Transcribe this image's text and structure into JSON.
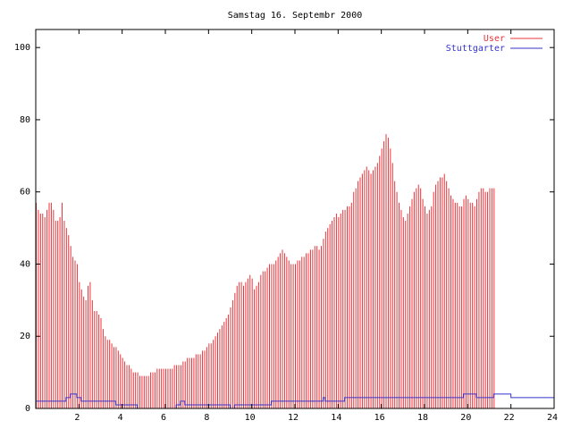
{
  "chart_data": {
    "type": "bar",
    "title": "Samstag 16. Septembr 2000",
    "xlabel": "",
    "ylabel": "",
    "xlim": [
      0,
      24
    ],
    "ylim": [
      0,
      105
    ],
    "x_ticks": [
      "2",
      "4",
      "6",
      "8",
      "10",
      "12",
      "14",
      "16",
      "18",
      "20",
      "22",
      "24"
    ],
    "y_ticks": [
      "0",
      "20",
      "40",
      "60",
      "80",
      "100"
    ],
    "grid": false,
    "legend_position": "top-right",
    "series": [
      {
        "name": "User",
        "type": "bar",
        "color": "#e8343a",
        "step_hours": 0.1,
        "values": [
          57,
          55,
          54,
          54,
          53,
          55,
          57,
          57,
          55,
          52,
          52,
          53,
          57,
          52,
          50,
          48,
          45,
          42,
          41,
          40,
          35,
          33,
          31,
          30,
          34,
          35,
          30,
          27,
          27,
          26,
          25,
          22,
          20,
          19,
          19,
          18,
          17,
          17,
          16,
          15,
          14,
          13,
          12,
          12,
          11,
          10,
          10,
          10,
          9,
          9,
          9,
          9,
          9,
          10,
          10,
          10,
          11,
          11,
          11,
          11,
          11,
          11,
          11,
          11,
          12,
          12,
          12,
          12,
          13,
          13,
          14,
          14,
          14,
          14,
          15,
          15,
          15,
          16,
          16,
          17,
          18,
          18,
          19,
          20,
          21,
          22,
          23,
          24,
          25,
          26,
          28,
          30,
          32,
          34,
          35,
          35,
          34,
          35,
          36,
          37,
          36,
          33,
          34,
          35,
          37,
          38,
          38,
          39,
          40,
          40,
          40,
          41,
          42,
          43,
          44,
          43,
          42,
          41,
          40,
          40,
          40,
          41,
          41,
          42,
          42,
          43,
          43,
          44,
          44,
          45,
          45,
          44,
          45,
          47,
          49,
          50,
          51,
          52,
          53,
          54,
          53,
          54,
          55,
          55,
          56,
          56,
          57,
          60,
          61,
          63,
          64,
          65,
          66,
          67,
          66,
          65,
          66,
          67,
          68,
          70,
          72,
          74,
          76,
          75,
          72,
          68,
          63,
          60,
          57,
          55,
          53,
          52,
          54,
          56,
          58,
          60,
          61,
          62,
          61,
          58,
          56,
          54,
          55,
          56,
          60,
          62,
          63,
          64,
          64,
          65,
          63,
          61,
          59,
          58,
          57,
          57,
          56,
          56,
          58,
          59,
          58,
          57,
          57,
          56,
          58,
          60,
          61,
          61,
          60,
          60,
          61,
          61,
          61
        ]
      },
      {
        "name": "Stuttgarter",
        "type": "step",
        "color": "#3333cc",
        "points": [
          [
            0,
            2
          ],
          [
            1.2,
            2
          ],
          [
            1.4,
            3
          ],
          [
            1.6,
            4
          ],
          [
            1.9,
            3
          ],
          [
            2.1,
            2
          ],
          [
            3.6,
            2
          ],
          [
            3.7,
            1
          ],
          [
            4.6,
            1
          ],
          [
            4.7,
            0
          ],
          [
            6.4,
            0
          ],
          [
            6.5,
            1
          ],
          [
            6.7,
            2
          ],
          [
            6.9,
            1
          ],
          [
            8.8,
            1
          ],
          [
            9.0,
            0
          ],
          [
            9.2,
            1
          ],
          [
            10.8,
            1
          ],
          [
            10.9,
            2
          ],
          [
            13.1,
            2
          ],
          [
            13.3,
            3
          ],
          [
            13.4,
            2
          ],
          [
            14.2,
            2
          ],
          [
            14.3,
            3
          ],
          [
            19.7,
            3
          ],
          [
            19.8,
            4
          ],
          [
            20.3,
            4
          ],
          [
            20.4,
            3
          ],
          [
            21.1,
            3
          ],
          [
            21.2,
            4
          ],
          [
            21.9,
            4
          ],
          [
            22.0,
            3
          ],
          [
            23.6,
            3
          ],
          [
            23.7,
            3
          ],
          [
            24,
            3
          ]
        ]
      }
    ]
  }
}
